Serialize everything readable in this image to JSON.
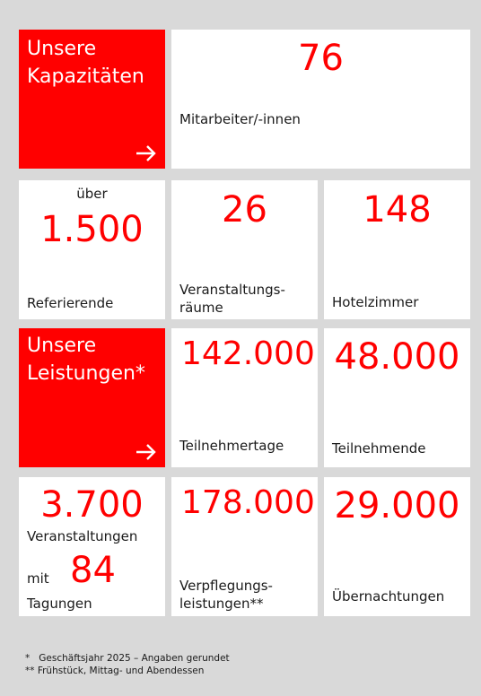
{
  "capacities": {
    "title_line1": "Unsere",
    "title_line2": "Kapazitäten",
    "staff": {
      "value": "76",
      "label": "Mitarbeiter/-innen"
    },
    "speakers": {
      "prefix": "über",
      "value": "1.500",
      "label": "Referierende"
    },
    "rooms": {
      "value": "26",
      "label_line1": "Veranstaltungs-",
      "label_line2": "räume"
    },
    "hotel": {
      "value": "148",
      "label": "Hotelzimmer"
    }
  },
  "services": {
    "title_line1": "Unsere",
    "title_line2": "Leistungen*",
    "participant_days": {
      "value": "142.000",
      "label": "Teilnehmertage"
    },
    "participants": {
      "value": "48.000",
      "label": "Teilnehmende"
    },
    "events": {
      "value": "3.700",
      "label": "Veranstaltungen",
      "with": "mit",
      "conferences_value": "84",
      "conferences_label": "Tagungen"
    },
    "catering": {
      "value": "178.000",
      "label_line1": "Verpflegungs-",
      "label_line2": "leistungen**"
    },
    "overnight": {
      "value": "29.000",
      "label": "Übernachtungen"
    }
  },
  "footnotes": {
    "note1": "*   Geschäftsjahr 2025 – Angaben gerundet",
    "note2": "** Frühstück, Mittag- und Abendessen"
  },
  "colors": {
    "accent": "#ff0000",
    "background": "#d9d9d9",
    "tile": "#ffffff"
  },
  "icons": {
    "arrow": "arrow-right-icon"
  }
}
